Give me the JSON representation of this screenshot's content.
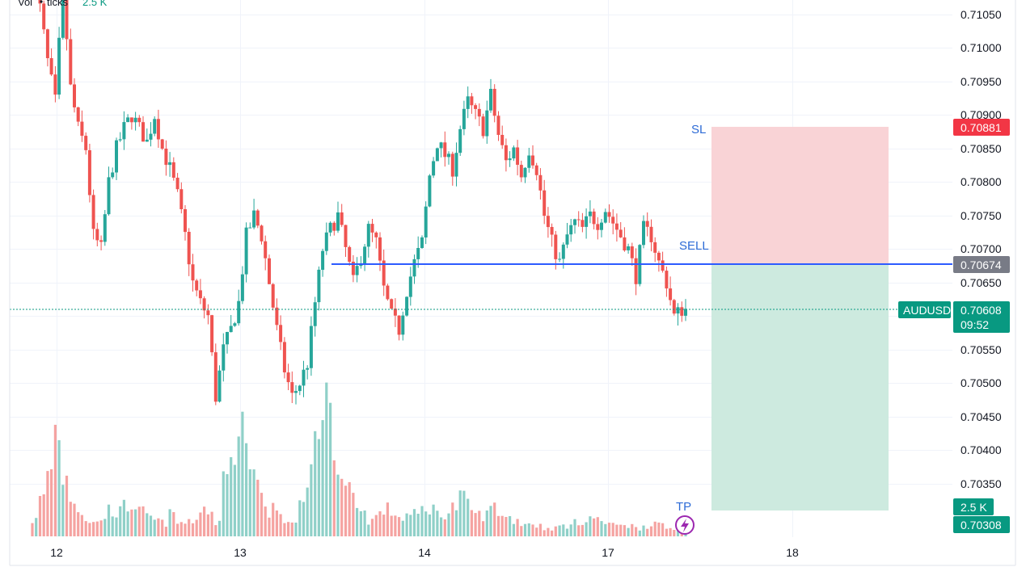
{
  "legend": {
    "volume_label": "Vol",
    "ticks_label": "ticks",
    "volume_value": "2.5 K"
  },
  "price_axis": {
    "ticks": [
      "0.71050",
      "0.71000",
      "0.70950",
      "0.70900",
      "0.70850",
      "0.70800",
      "0.70750",
      "0.70700",
      "0.70650",
      "0.70550",
      "0.70500",
      "0.70450",
      "0.70400",
      "0.70350"
    ]
  },
  "time_axis": {
    "ticks": [
      "12",
      "13",
      "14",
      "17",
      "18"
    ]
  },
  "badges": {
    "stop_loss": "0.70881",
    "entry": "0.70674",
    "symbol": "AUDUSD",
    "last_price": "0.70608",
    "countdown": "09:52",
    "volume": "2.5 K",
    "take_profit": "0.70308"
  },
  "annotations": {
    "sl": "SL",
    "sell": "SELL",
    "tp": "TP"
  },
  "colors": {
    "up": "#26a69a",
    "down": "#ef5350",
    "up_volume": "#8fd0c8",
    "down_volume": "#f5a3a1",
    "entry_line": "#2d5bff",
    "sl_zone": "#f9d3d6",
    "tp_zone": "#cdeadf",
    "sl_badge": "#f23645",
    "entry_badge": "#787b86",
    "price_badge": "#089981",
    "tp_marker": "#9c27b0"
  },
  "chart_data": {
    "type": "candlestick",
    "symbol": "AUDUSD",
    "ylim": [
      0.7029,
      0.71072
    ],
    "x_ticks": [
      "12",
      "13",
      "14",
      "17",
      "18"
    ],
    "levels": {
      "stop_loss": 0.70881,
      "entry": 0.70674,
      "last": 0.70608,
      "take_profit": 0.70308
    },
    "price": [
      0.7109,
      0.7106,
      0.7098,
      0.7092,
      0.7109,
      0.7094,
      0.7088,
      0.7085,
      0.7072,
      0.707,
      0.708,
      0.7085,
      0.7088,
      0.709,
      0.7088,
      0.7086,
      0.709,
      0.7085,
      0.7082,
      0.7078,
      0.7072,
      0.7065,
      0.7062,
      0.706,
      0.7048,
      0.7055,
      0.7058,
      0.7062,
      0.7072,
      0.7075,
      0.7072,
      0.7065,
      0.7058,
      0.7052,
      0.7048,
      0.705,
      0.7053,
      0.7062,
      0.707,
      0.7073,
      0.7075,
      0.707,
      0.7065,
      0.7069,
      0.7073,
      0.7071,
      0.7064,
      0.706,
      0.7058,
      0.7064,
      0.7068,
      0.7071,
      0.7081,
      0.7086,
      0.7084,
      0.7082,
      0.7088,
      0.7092,
      0.709,
      0.7088,
      0.7093,
      0.7087,
      0.7083,
      0.7085,
      0.7081,
      0.7085,
      0.7082,
      0.7075,
      0.7071,
      0.7068,
      0.7072,
      0.7074,
      0.7073,
      0.7075,
      0.7074,
      0.7076,
      0.7074,
      0.7072,
      0.707,
      0.7066,
      0.7073,
      0.7072,
      0.7068,
      0.7065,
      0.706,
      0.7061
    ],
    "volume": [
      6,
      14,
      25,
      40,
      22,
      15,
      10,
      6,
      5,
      7,
      10,
      9,
      11,
      12,
      9,
      7,
      6,
      5,
      8,
      5,
      5,
      6,
      11,
      9,
      5,
      22,
      38,
      48,
      30,
      20,
      15,
      10,
      8,
      5,
      4,
      11,
      24,
      38,
      52,
      40,
      28,
      18,
      14,
      9,
      6,
      8,
      10,
      9,
      7,
      8,
      8,
      10,
      11,
      8,
      9,
      11,
      14,
      11,
      8,
      8,
      11,
      9,
      7,
      6,
      5,
      5,
      4,
      3,
      3,
      4,
      4,
      5,
      6,
      7,
      6,
      5,
      4,
      5,
      4,
      3,
      4,
      5,
      4,
      3,
      3,
      4
    ]
  }
}
